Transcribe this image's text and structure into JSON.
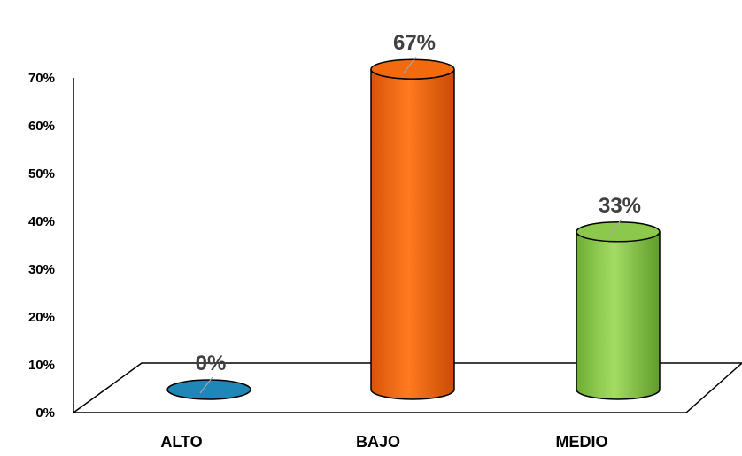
{
  "chart_data": {
    "type": "bar",
    "categories": [
      "ALTO",
      "BAJO",
      "MEDIO"
    ],
    "values": [
      0,
      67,
      33
    ],
    "data_labels": [
      "0%",
      "67%",
      "33%"
    ],
    "title": "",
    "xlabel": "",
    "ylabel": "",
    "ylim": [
      0,
      70
    ],
    "y_ticks": [
      "0%",
      "10%",
      "20%",
      "30%",
      "40%",
      "50%",
      "60%",
      "70%"
    ],
    "grid": false,
    "legend": "none",
    "style": "3d-cylinder",
    "colors": {
      "ALTO": "#1f86b8",
      "BAJO": "#f26a0d",
      "MEDIO": "#8cc84b"
    }
  }
}
